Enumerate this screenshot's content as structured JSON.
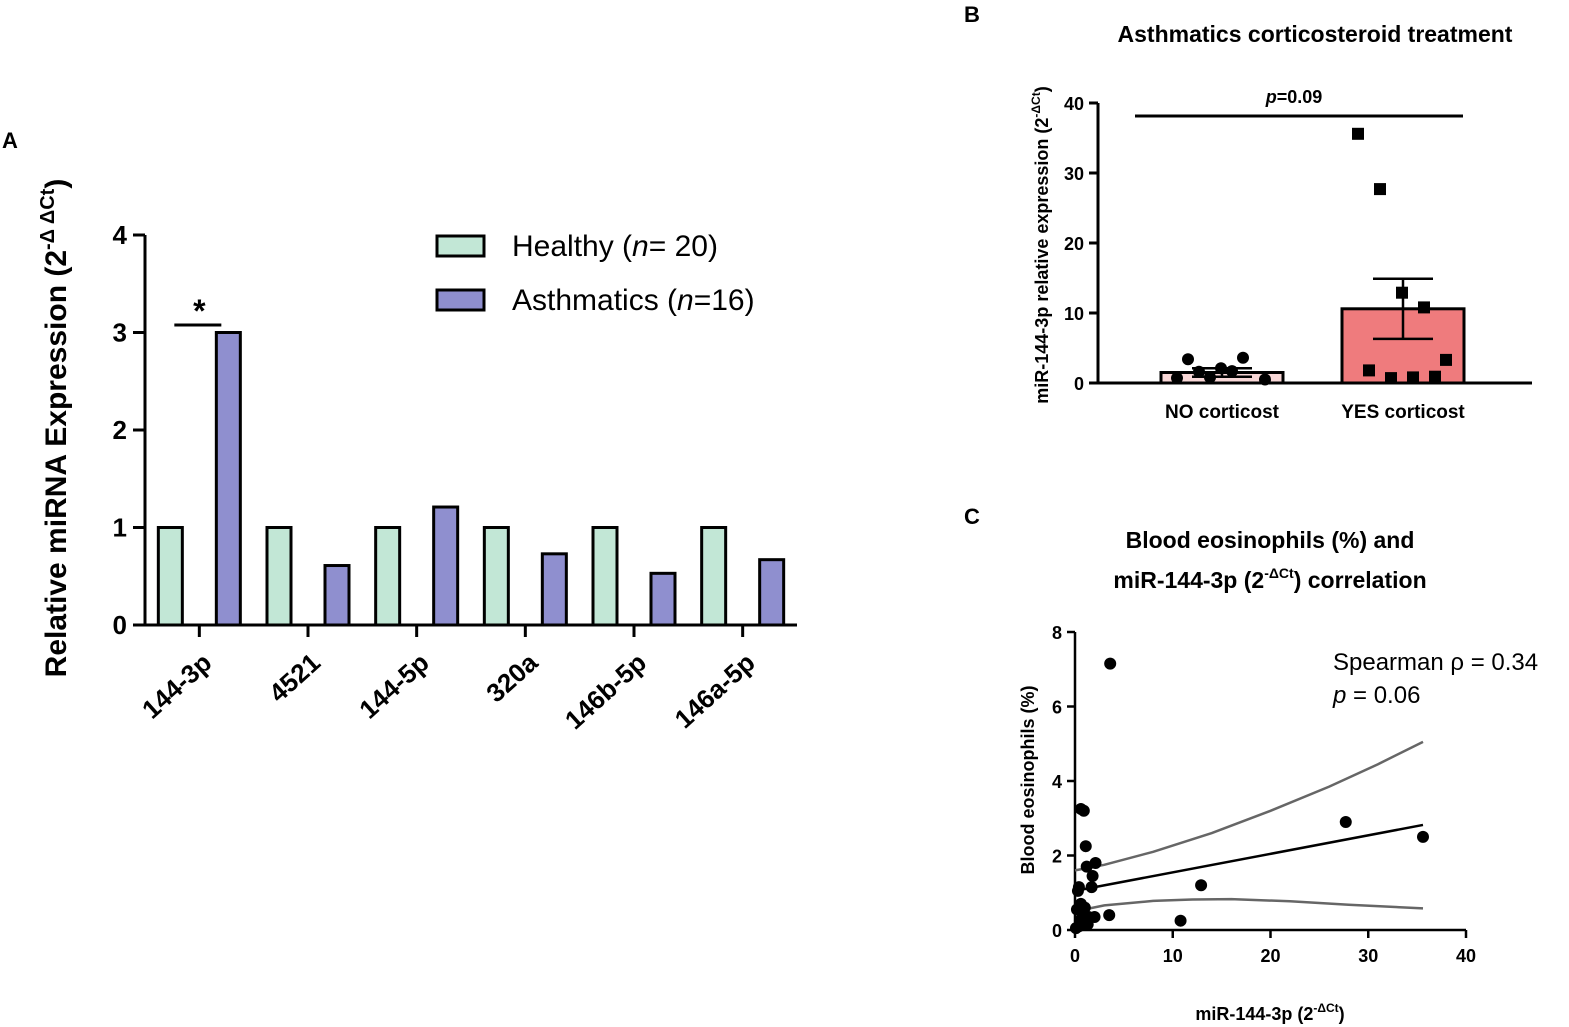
{
  "chart_data": [
    {
      "panel": "A",
      "type": "bar",
      "title": "",
      "ylabel": "Relative miRNA Expression (2",
      "ylabel_sup": "-Δ ΔCt",
      "ylabel_close": ")",
      "ylim": [
        0,
        4
      ],
      "yticks": [
        "0",
        "1",
        "2",
        "3",
        "4"
      ],
      "categories": [
        "144-3p",
        "4521",
        "144-5p",
        "320a",
        "146b-5p",
        "146a-5p"
      ],
      "series": [
        {
          "name": "Healthy",
          "n_label": "n",
          "n_value": "= 20)",
          "legend_prefix": "Healthy (",
          "color": "#c2e7d6",
          "values": [
            1,
            1,
            1,
            1,
            1,
            1
          ]
        },
        {
          "name": "Asthmatics",
          "n_label": "n",
          "n_value": "=16)",
          "legend_prefix": "Asthmatics (",
          "color": "#8f8fcf",
          "values": [
            3.0,
            0.61,
            1.21,
            0.73,
            0.53,
            0.67
          ]
        }
      ],
      "significance": {
        "category": "144-3p",
        "symbol": "*"
      }
    },
    {
      "panel": "B",
      "type": "bar",
      "title": "Asthmatics corticosteroid treatment",
      "ylabel": "miR-144-3p relative expression (2",
      "ylabel_sup": "-ΔCt",
      "ylabel_close": ")",
      "ylim": [
        0,
        40
      ],
      "yticks": [
        "0",
        "10",
        "20",
        "30",
        "40"
      ],
      "categories": [
        "NO corticost",
        "YES corticost"
      ],
      "means": [
        1.5,
        10.6
      ],
      "sem": [
        0.6,
        4.3
      ],
      "colors": [
        "#f8d7d7",
        "#ef7b7d"
      ],
      "points": [
        [
          0.7,
          1.6,
          2.1,
          3.6,
          0.5,
          3.4,
          0.8,
          1.7
        ],
        [
          35.6,
          27.7,
          12.9,
          10.8,
          3.3,
          1.8,
          0.7,
          0.8,
          0.9
        ]
      ],
      "p_prefix": "p",
      "p_value": "=0.09"
    },
    {
      "panel": "C",
      "type": "scatter",
      "title_line1": "Blood eosinophils (%) and",
      "title_line2a": "miR-144-3p (2",
      "title_line2_sup": "-ΔCt",
      "title_line2b": ") correlation",
      "xlabel": "miR-144-3p (2",
      "xlabel_sup": "-ΔCt",
      "xlabel_close": ")",
      "ylabel": "Blood eosinophils (%)",
      "xlim": [
        0,
        40
      ],
      "ylim": [
        0,
        8
      ],
      "xticks": [
        "0",
        "10",
        "20",
        "30",
        "40"
      ],
      "yticks": [
        "0",
        "2",
        "4",
        "6",
        "8"
      ],
      "points": [
        [
          3.6,
          7.15
        ],
        [
          0.6,
          3.25
        ],
        [
          0.9,
          3.2
        ],
        [
          1.1,
          2.25
        ],
        [
          1.2,
          1.7
        ],
        [
          2.1,
          1.8
        ],
        [
          1.8,
          1.45
        ],
        [
          1.7,
          1.15
        ],
        [
          0.4,
          1.15
        ],
        [
          0.3,
          1.05
        ],
        [
          0.6,
          0.7
        ],
        [
          0.2,
          0.55
        ],
        [
          1.0,
          0.6
        ],
        [
          0.8,
          0.45
        ],
        [
          1.4,
          0.35
        ],
        [
          2.0,
          0.35
        ],
        [
          3.5,
          0.4
        ],
        [
          0.5,
          0.25
        ],
        [
          1.3,
          0.15
        ],
        [
          0.4,
          0.1
        ],
        [
          0.1,
          0.05
        ],
        [
          0.9,
          0.3
        ],
        [
          10.8,
          0.25
        ],
        [
          12.9,
          1.2
        ],
        [
          27.7,
          2.9
        ],
        [
          35.6,
          2.5
        ]
      ],
      "fit": {
        "x0": 0,
        "y0": 1.05,
        "x1": 35.6,
        "y1": 2.82
      },
      "ci_upper": [
        [
          0,
          1.6
        ],
        [
          3,
          1.75
        ],
        [
          8,
          2.1
        ],
        [
          14,
          2.6
        ],
        [
          20,
          3.2
        ],
        [
          26,
          3.85
        ],
        [
          31,
          4.45
        ],
        [
          35.6,
          5.05
        ]
      ],
      "ci_lower": [
        [
          0,
          0.5
        ],
        [
          3,
          0.66
        ],
        [
          8,
          0.78
        ],
        [
          12,
          0.82
        ],
        [
          16,
          0.83
        ],
        [
          22,
          0.77
        ],
        [
          28,
          0.68
        ],
        [
          35.6,
          0.58
        ]
      ],
      "annotation_line1": "Spearman ρ = 0.34",
      "annotation_p": "p",
      "annotation_p_value": " = 0.06"
    }
  ],
  "panel_labels": {
    "a": "A",
    "b": "B",
    "c": "C"
  }
}
